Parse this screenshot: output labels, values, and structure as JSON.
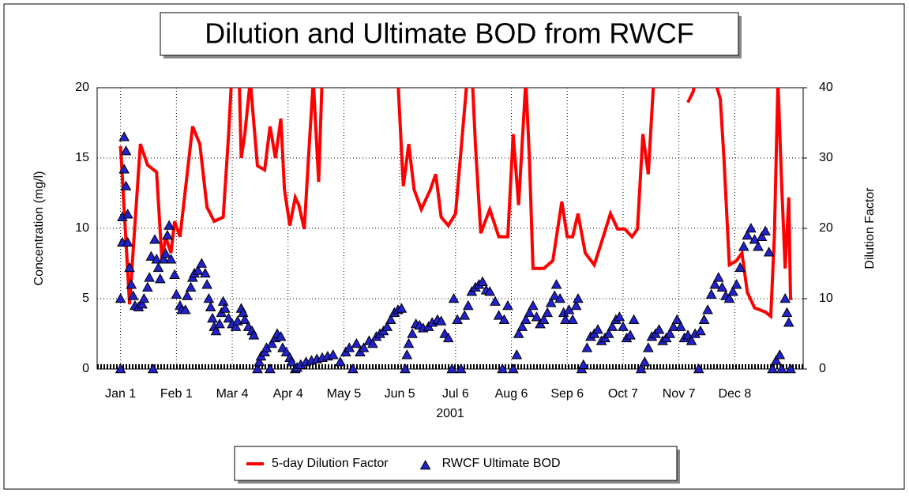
{
  "chart_data": {
    "type": "line_scatter",
    "title": "Dilution and Ultimate BOD from RWCF",
    "x_label": "2001",
    "y_label": "Concentration (mg/l)",
    "y2_label": "Dilution Factor",
    "xlim": [
      -13,
      379
    ],
    "ylim": [
      0,
      20
    ],
    "y2lim": [
      0,
      40
    ],
    "xticks": [
      {
        "value": 0,
        "label": "Jan 1"
      },
      {
        "value": 31,
        "label": "Feb 1"
      },
      {
        "value": 62,
        "label": "Mar 4"
      },
      {
        "value": 93,
        "label": "Apr 4"
      },
      {
        "value": 124,
        "label": "May 5"
      },
      {
        "value": 155,
        "label": "Jun 5"
      },
      {
        "value": 186,
        "label": "Jul 6"
      },
      {
        "value": 217,
        "label": "Aug 6"
      },
      {
        "value": 248,
        "label": "Sep 6"
      },
      {
        "value": 279,
        "label": "Oct 7"
      },
      {
        "value": 310,
        "label": "Nov 7"
      },
      {
        "value": 341,
        "label": "Dec 8"
      }
    ],
    "yticks": [
      0,
      5,
      10,
      15,
      20
    ],
    "y2ticks": [
      0,
      10,
      20,
      30,
      40
    ],
    "grid": true,
    "legend": "bottom",
    "series": [
      {
        "name": "5-day Dilution Factor",
        "color": "#ff0000",
        "axis": "y2",
        "kind": "line",
        "x": [
          0,
          5,
          11,
          15,
          20,
          23,
          25,
          28,
          30,
          33,
          38,
          40,
          44,
          48,
          52,
          57,
          60,
          62,
          66,
          67,
          69,
          72,
          76,
          80,
          83,
          86,
          89,
          91,
          94,
          97,
          99,
          102,
          105,
          107,
          110,
          112,
          115,
          130,
          154,
          157,
          160,
          163,
          167,
          172,
          175,
          178,
          182,
          186,
          189,
          192,
          195,
          197,
          200,
          205,
          210,
          215,
          218,
          221,
          225,
          227,
          229,
          235,
          240,
          245,
          248,
          251,
          254,
          258,
          263,
          268,
          272,
          276,
          280,
          284,
          287,
          290,
          293,
          296,
          298,
          306,
          315,
          318,
          320,
          325,
          330,
          333,
          335,
          338,
          342,
          345,
          348,
          352,
          358,
          361,
          363,
          365,
          367,
          369,
          371,
          372
        ],
        "values": [
          31.7,
          9.2,
          32,
          29,
          28,
          15.4,
          18.8,
          16.5,
          21,
          18.8,
          30,
          34.5,
          32,
          23,
          21,
          21.6,
          33.4,
          43,
          40,
          30,
          33.4,
          41,
          28.9,
          28.3,
          34.5,
          30,
          35.6,
          25.5,
          20.4,
          24.4,
          23.3,
          19.9,
          32.8,
          41,
          26.6,
          42,
          42,
          null,
          41,
          26,
          32,
          25.5,
          22.7,
          25.5,
          27.7,
          21.6,
          20.4,
          22.1,
          31,
          40,
          43,
          32,
          19.3,
          22.7,
          18.8,
          18.8,
          33.4,
          23.3,
          41,
          30,
          14.3,
          14.3,
          15.4,
          23.8,
          18.8,
          18.8,
          22.1,
          16.5,
          14.8,
          18.8,
          22.1,
          19.9,
          19.9,
          18.8,
          19.9,
          33.4,
          27.7,
          41,
          42,
          null,
          37.9,
          39.5,
          42,
          null,
          41,
          38.4,
          30,
          14.8,
          15.4,
          16.5,
          10.9,
          8.7,
          8.1,
          7.5,
          18.8,
          41,
          26.6,
          14.3,
          24.4,
          9.8
        ]
      },
      {
        "name": "RWCF Ultimate BOD",
        "color": "#2222cc",
        "kind": "scatter",
        "x": [
          0,
          0,
          1,
          1,
          2,
          2,
          3,
          3,
          4,
          4,
          5,
          6,
          7,
          8,
          10,
          12,
          13,
          15,
          16,
          17,
          18,
          19,
          20,
          21,
          22,
          24,
          25,
          26,
          27,
          28,
          30,
          31,
          33,
          34,
          36,
          37,
          39,
          40,
          41,
          43,
          45,
          47,
          48,
          49,
          50,
          51,
          52,
          53,
          55,
          56,
          57,
          58,
          60,
          62,
          64,
          65,
          67,
          68,
          69,
          71,
          73,
          74,
          76,
          77,
          78,
          80,
          81,
          83,
          84,
          86,
          87,
          89,
          90,
          92,
          94,
          95,
          97,
          98,
          100,
          103,
          106,
          109,
          112,
          115,
          118,
          122,
          125,
          127,
          129,
          131,
          133,
          135,
          138,
          140,
          142,
          144,
          146,
          148,
          150,
          152,
          154,
          156,
          158,
          159,
          160,
          162,
          164,
          166,
          168,
          171,
          173,
          176,
          178,
          180,
          182,
          184,
          185,
          187,
          189,
          191,
          193,
          195,
          197,
          199,
          201,
          203,
          205,
          208,
          210,
          212,
          213,
          215,
          218,
          220,
          221,
          223,
          225,
          227,
          229,
          231,
          233,
          235,
          237,
          239,
          241,
          242,
          244,
          246,
          247,
          249,
          251,
          253,
          254,
          256,
          257,
          259,
          261,
          263,
          265,
          267,
          269,
          271,
          273,
          275,
          277,
          279,
          281,
          283,
          285,
          289,
          291,
          293,
          295,
          297,
          299,
          301,
          303,
          305,
          307,
          309,
          311,
          313,
          315,
          317,
          319,
          321,
          322,
          324,
          326,
          328,
          330,
          332,
          334,
          336,
          338,
          340,
          342,
          344,
          346,
          348,
          350,
          352,
          354,
          356,
          358,
          360,
          362,
          364,
          366,
          367,
          369,
          370,
          371,
          372
        ],
        "values": [
          0,
          5,
          9,
          10.8,
          14.2,
          16.5,
          15.5,
          13,
          11,
          9,
          7.2,
          6,
          5.2,
          4.5,
          4.4,
          4.6,
          5,
          5.8,
          6.5,
          8,
          0,
          9.2,
          7.8,
          7.2,
          6.4,
          7.8,
          8.2,
          9.5,
          10.2,
          7.8,
          6.7,
          5.3,
          4.5,
          4.2,
          4.2,
          5.2,
          5.8,
          6.5,
          6.8,
          7,
          7.5,
          6.8,
          6,
          5,
          4.4,
          3.6,
          3,
          2.7,
          3.2,
          4,
          4.8,
          4.3,
          3.6,
          3.2,
          3,
          3.4,
          4.3,
          4,
          3.5,
          3,
          2.7,
          2.4,
          0,
          0.5,
          0.9,
          1.2,
          1.5,
          0,
          1.8,
          2.2,
          2.5,
          2.3,
          1.5,
          1.2,
          0.8,
          0.5,
          0,
          0.1,
          0.3,
          0.5,
          0.6,
          0.7,
          0.8,
          0.9,
          1,
          0.5,
          1.2,
          1.5,
          0,
          1.8,
          1.2,
          1.5,
          2,
          1.8,
          2.3,
          2.5,
          2.7,
          3,
          3.5,
          4,
          4.2,
          4.3,
          0,
          1,
          1.8,
          2.5,
          3.2,
          3.1,
          2.9,
          3,
          3.3,
          3.5,
          3.4,
          2.5,
          2.2,
          0,
          5,
          3.5,
          0,
          3.8,
          4.5,
          5.5,
          5.8,
          6,
          6.2,
          5.6,
          5.5,
          4.8,
          3.8,
          0,
          3.5,
          4.5,
          0,
          1,
          2.5,
          3,
          3.5,
          4,
          4.5,
          3.7,
          3.2,
          3.5,
          4,
          4.7,
          5.2,
          6,
          5,
          4,
          3.5,
          4.2,
          3.5,
          4.5,
          5,
          0,
          0.3,
          1.5,
          2.3,
          2.5,
          2.8,
          2,
          2.2,
          2.5,
          3,
          3.5,
          3.7,
          3,
          2.2,
          2.4,
          3.5,
          0,
          0.5,
          1.5,
          2.3,
          2.5,
          2.8,
          2,
          2.2,
          2.5,
          3,
          3.5,
          3,
          2.2,
          2.4,
          2,
          2.5,
          0,
          2.7,
          3.5,
          4.2,
          5.3,
          6,
          6.5,
          5.8,
          5.2,
          5,
          5.5,
          6,
          7.2,
          8.7,
          9.5,
          10,
          9.2,
          8.7,
          9.4,
          9.8,
          8.3,
          0,
          0.6,
          1,
          0,
          5,
          4,
          3.3,
          0
        ]
      }
    ]
  }
}
